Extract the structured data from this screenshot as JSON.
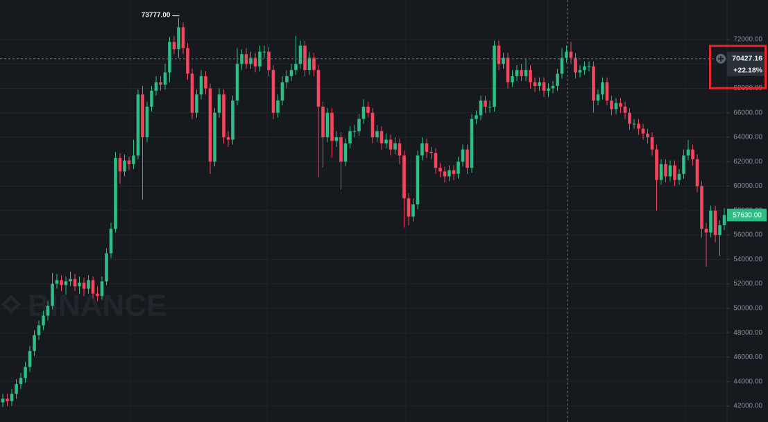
{
  "chart_data": {
    "type": "candlestick",
    "up_color": "#2ebd85",
    "down_color": "#f6465d",
    "ylim": [
      40690,
      75233
    ],
    "yticks": [
      {
        "value": 42000,
        "label": "42000.00"
      },
      {
        "value": 44000,
        "label": "44000.00"
      },
      {
        "value": 46000,
        "label": "46000.00"
      },
      {
        "value": 48000,
        "label": "48000.00"
      },
      {
        "value": 50000,
        "label": "50000.00"
      },
      {
        "value": 52000,
        "label": "52000.00"
      },
      {
        "value": 54000,
        "label": "54000.00"
      },
      {
        "value": 56000,
        "label": "56000.00"
      },
      {
        "value": 58000,
        "label": "58000.00"
      },
      {
        "value": 60000,
        "label": "60000.00"
      },
      {
        "value": 62000,
        "label": "62000.00"
      },
      {
        "value": 64000,
        "label": "64000.00"
      },
      {
        "value": 66000,
        "label": "66000.00"
      },
      {
        "value": 68000,
        "label": "68000.00"
      },
      {
        "value": 70000,
        "label": "70000.00"
      },
      {
        "value": 72000,
        "label": "72000.00"
      }
    ],
    "grid": true,
    "watermark": "BINANCE",
    "high_label": "73777.00",
    "crosshair": {
      "price": 70427.16,
      "price_label": "70427.16",
      "change_label": "+22.18%"
    },
    "last_price_label": "57630.00",
    "open": [
      42300,
      42600,
      42400,
      43000,
      43800,
      44300,
      45200,
      46500,
      47800,
      48600,
      49400,
      50200,
      52000,
      52300,
      51900,
      52200,
      52400,
      51800,
      52100,
      51600,
      52300,
      51200,
      51000,
      52200,
      54500,
      56500,
      62300,
      61200,
      62100,
      61800,
      62500,
      67500,
      64000,
      66500,
      67800,
      68500,
      68300,
      69300,
      71800,
      71200,
      73000,
      71300,
      69200,
      66000,
      67500,
      69000,
      68000,
      62000,
      66000,
      67500,
      64000,
      63800,
      67000,
      70000,
      70800,
      70000,
      70500,
      69800,
      71000,
      71000,
      69500,
      66000,
      67000,
      68500,
      69000,
      69500,
      70000,
      71500,
      69500,
      70500,
      69500,
      66500,
      64000,
      66000,
      63700,
      64000,
      62000,
      63500,
      64500,
      64500,
      65500,
      66500,
      66000,
      64000,
      64500,
      63500,
      63800,
      63000,
      63500,
      62500,
      59000,
      57500,
      58500,
      62500,
      63500,
      62800,
      62700,
      61500,
      61200,
      60800,
      61300,
      61000,
      62000,
      63000,
      61500,
      65500,
      65800,
      67000,
      66500,
      66500,
      71500,
      70000,
      70500,
      68500,
      69000,
      69500,
      69000,
      69500,
      68500,
      68200,
      68500,
      67800,
      68000,
      68200,
      69200,
      70500,
      71000,
      70500,
      69300,
      69500,
      69800,
      69800,
      67000,
      67500,
      68500,
      67000,
      66300,
      66800,
      66500,
      66000,
      65100,
      65100,
      64700,
      64300,
      64000,
      63000,
      60500,
      61800,
      60800,
      61700,
      60500,
      61000,
      62500,
      63000,
      62200,
      60000,
      56500,
      56200,
      58000,
      56000,
      56800
    ],
    "high": [
      43000,
      43000,
      43400,
      44200,
      44700,
      45600,
      46900,
      48200,
      49000,
      49800,
      50600,
      52900,
      52800,
      52700,
      52600,
      53000,
      52800,
      52600,
      52500,
      52700,
      52600,
      51800,
      52600,
      54900,
      57000,
      62800,
      62700,
      62600,
      62400,
      63800,
      67900,
      68200,
      66900,
      68200,
      69000,
      69000,
      70000,
      72200,
      72300,
      73777,
      73400,
      71700,
      69600,
      67900,
      69500,
      69400,
      68400,
      66400,
      68000,
      67900,
      64500,
      67400,
      71300,
      71200,
      71300,
      71000,
      70900,
      71500,
      71500,
      71400,
      69900,
      67500,
      69000,
      69500,
      70000,
      72300,
      71900,
      71900,
      71000,
      70900,
      69900,
      66900,
      66400,
      66400,
      64500,
      64400,
      63900,
      64900,
      65000,
      65900,
      67100,
      66900,
      66400,
      65000,
      64900,
      64300,
      64200,
      64000,
      63900,
      62900,
      59400,
      59000,
      62900,
      64000,
      63900,
      63200,
      63100,
      61900,
      61600,
      61700,
      61700,
      62400,
      63400,
      63400,
      65900,
      66200,
      67400,
      67400,
      67000,
      71900,
      71900,
      70900,
      70900,
      69500,
      69900,
      70000,
      70400,
      69900,
      68900,
      68900,
      68900,
      68400,
      68600,
      69600,
      71300,
      71500,
      71800,
      70900,
      69900,
      70200,
      70200,
      70200,
      67900,
      68900,
      68900,
      67400,
      67200,
      67200,
      66900,
      66400,
      65500,
      65500,
      65100,
      64700,
      64400,
      63400,
      62200,
      62200,
      62100,
      62100,
      61400,
      63000,
      63800,
      63400,
      62600,
      60400,
      57000,
      58400,
      58400,
      57200,
      58200
    ],
    "low": [
      41900,
      42000,
      42000,
      42600,
      43400,
      43900,
      44800,
      46100,
      47400,
      48200,
      49000,
      49900,
      51600,
      51400,
      51100,
      51800,
      51400,
      51200,
      51000,
      51200,
      50800,
      50600,
      50700,
      51900,
      54100,
      56200,
      60200,
      60800,
      61300,
      61400,
      62200,
      58900,
      63600,
      66100,
      67400,
      67800,
      67900,
      68500,
      70800,
      70500,
      70800,
      68700,
      65500,
      65600,
      67100,
      67500,
      61000,
      61600,
      65600,
      63500,
      63200,
      63400,
      66600,
      69500,
      69600,
      69600,
      69300,
      69400,
      70500,
      69000,
      65500,
      65600,
      66600,
      68000,
      68600,
      69100,
      69600,
      69000,
      69100,
      69000,
      60700,
      61500,
      63600,
      62300,
      63200,
      59700,
      61600,
      63100,
      64000,
      64100,
      65100,
      65600,
      63500,
      63600,
      63000,
      63100,
      62500,
      62600,
      61800,
      56600,
      56800,
      57100,
      58100,
      62100,
      62300,
      62200,
      61000,
      60700,
      60300,
      60400,
      60500,
      60600,
      61600,
      61000,
      61100,
      65100,
      65400,
      66000,
      66000,
      66100,
      69500,
      69600,
      68000,
      68100,
      68600,
      68600,
      68600,
      68000,
      67700,
      67800,
      67300,
      67300,
      67600,
      67800,
      68800,
      70100,
      70000,
      68800,
      68900,
      69100,
      69400,
      66000,
      66600,
      67100,
      66600,
      65800,
      65900,
      66000,
      65500,
      64600,
      64700,
      64200,
      63800,
      63500,
      62500,
      58000,
      60100,
      60300,
      60400,
      60000,
      60100,
      60600,
      62100,
      61700,
      59500,
      55800,
      53400,
      55800,
      55400,
      54300,
      56400
    ],
    "close": [
      42600,
      42400,
      43000,
      43800,
      44300,
      45200,
      46500,
      47800,
      48600,
      49400,
      50200,
      52000,
      52300,
      51900,
      52200,
      52400,
      51800,
      52100,
      51600,
      52300,
      51200,
      51000,
      52200,
      54500,
      56500,
      62300,
      61200,
      62100,
      61800,
      62500,
      67500,
      64000,
      66500,
      67800,
      68500,
      68300,
      69300,
      71800,
      71200,
      73000,
      71300,
      69200,
      66000,
      67500,
      69000,
      68000,
      62000,
      66000,
      67500,
      64000,
      63800,
      67000,
      70000,
      70800,
      70000,
      70500,
      69800,
      71000,
      71000,
      69500,
      66000,
      67000,
      68500,
      69000,
      69500,
      70000,
      71500,
      69500,
      70500,
      69500,
      66500,
      64000,
      66000,
      63700,
      64000,
      62000,
      63500,
      64500,
      64500,
      65500,
      66500,
      66000,
      64000,
      64500,
      63500,
      63800,
      63000,
      63500,
      62500,
      59000,
      57500,
      58500,
      62500,
      63500,
      62800,
      62700,
      61500,
      61200,
      60800,
      61300,
      61000,
      62000,
      63000,
      61500,
      65500,
      65800,
      67000,
      66500,
      66500,
      71500,
      70000,
      70500,
      68500,
      69000,
      69500,
      69000,
      69500,
      68500,
      68200,
      68500,
      67800,
      68000,
      68200,
      69200,
      70500,
      71000,
      70500,
      69300,
      69500,
      69800,
      69800,
      67000,
      67500,
      68500,
      67000,
      66300,
      66800,
      66500,
      66000,
      65100,
      65100,
      64700,
      64300,
      64000,
      63000,
      60500,
      61800,
      60800,
      61700,
      60500,
      61000,
      62500,
      63000,
      62200,
      60000,
      56500,
      56200,
      58000,
      56000,
      56800,
      57630
    ]
  }
}
